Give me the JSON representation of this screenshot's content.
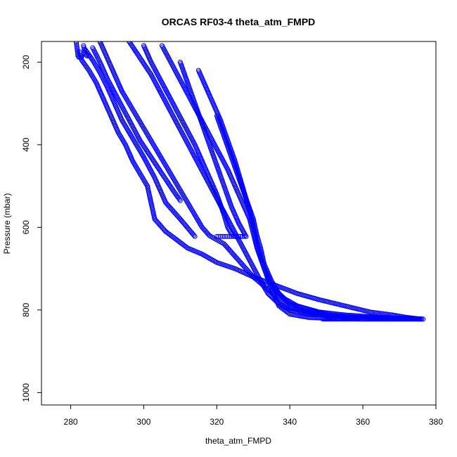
{
  "chart_data": {
    "type": "scatter",
    "title": "ORCAS RF03-4 theta_atm_FMPD",
    "xlabel": "theta_atm_FMPD",
    "ylabel": "Pressure (mbar)",
    "xlim": [
      272,
      380
    ],
    "ylim": [
      1030,
      150
    ],
    "y_reversed": true,
    "x_ticks": [
      280,
      300,
      320,
      340,
      360,
      380
    ],
    "y_ticks": [
      200,
      400,
      600,
      800,
      1000
    ],
    "marker": "open-circle",
    "color": "#0000ff",
    "series": [
      {
        "x": [
          281.5,
          281.8,
          282.0,
          282.2,
          282.5,
          283.0
        ],
        "y": [
          150,
          170,
          185,
          188,
          188,
          187
        ]
      },
      {
        "x": [
          283.5,
          283.8,
          284.0,
          284.5,
          285.0
        ],
        "y": [
          160,
          172,
          180,
          185,
          185
        ]
      },
      {
        "x": [
          282.5,
          283,
          285,
          287,
          289,
          291,
          293,
          295,
          297,
          299,
          301,
          303,
          306,
          309,
          312,
          316,
          320,
          325,
          330,
          336,
          342,
          348,
          355,
          362,
          368,
          372,
          376
        ],
        "y": [
          175,
          195,
          220,
          250,
          290,
          330,
          370,
          400,
          440,
          470,
          500,
          580,
          610,
          630,
          650,
          665,
          685,
          700,
          720,
          740,
          760,
          775,
          790,
          805,
          812,
          818,
          822
        ]
      },
      {
        "x": [
          284,
          286,
          288,
          290,
          292,
          294,
          297,
          300,
          303,
          306,
          310,
          314
        ],
        "y": [
          170,
          195,
          225,
          260,
          300,
          340,
          385,
          430,
          480,
          540,
          580,
          622
        ]
      },
      {
        "x": [
          286,
          288,
          290,
          293,
          296,
          299,
          302,
          305,
          308,
          310
        ],
        "y": [
          165,
          200,
          240,
          290,
          340,
          390,
          430,
          470,
          510,
          535
        ]
      },
      {
        "x": [
          288,
          290,
          292,
          294,
          296,
          298,
          300,
          302,
          304,
          306,
          308,
          310,
          312,
          314,
          316,
          318,
          320,
          322,
          324,
          326,
          328,
          330,
          332,
          334,
          336,
          338,
          340,
          345,
          350,
          360,
          370,
          376
        ],
        "y": [
          150,
          190,
          230,
          270,
          300,
          330,
          360,
          390,
          420,
          450,
          480,
          510,
          540,
          570,
          600,
          620,
          630,
          640,
          660,
          680,
          700,
          720,
          735,
          750,
          765,
          780,
          795,
          805,
          812,
          818,
          820,
          822
        ]
      },
      {
        "x": [
          300,
          302,
          305,
          308,
          311,
          314,
          317,
          320,
          322,
          323,
          324,
          325
        ],
        "y": [
          160,
          200,
          250,
          300,
          350,
          400,
          460,
          520,
          570,
          600,
          615,
          622
        ]
      },
      {
        "x": [
          320,
          321,
          322,
          323,
          324,
          325,
          326,
          327,
          328
        ],
        "y": [
          622,
          622,
          622,
          622,
          622,
          622,
          622,
          622,
          622
        ]
      },
      {
        "x": [
          310,
          312,
          314,
          316,
          318,
          320,
          322,
          324,
          326,
          328
        ],
        "y": [
          200,
          250,
          300,
          350,
          400,
          450,
          500,
          550,
          590,
          622
        ]
      },
      {
        "x": [
          305,
          308,
          311,
          314,
          317,
          320,
          323,
          326,
          329,
          331,
          333,
          335,
          337,
          340,
          345,
          350,
          360,
          370,
          376
        ],
        "y": [
          160,
          210,
          260,
          310,
          360,
          410,
          460,
          520,
          580,
          650,
          700,
          750,
          790,
          810,
          818,
          820,
          822,
          822,
          822
        ]
      },
      {
        "x": [
          315,
          317,
          319,
          321,
          323,
          325,
          327,
          329,
          331,
          333,
          335,
          338,
          342,
          348,
          355,
          365,
          372,
          376
        ],
        "y": [
          220,
          260,
          300,
          340,
          390,
          440,
          500,
          560,
          640,
          700,
          740,
          770,
          790,
          805,
          812,
          818,
          820,
          822
        ]
      },
      {
        "x": [
          296,
          299,
          302,
          305,
          308,
          311,
          314,
          317,
          320,
          323,
          326,
          329,
          332,
          334,
          337,
          340,
          345,
          352,
          360,
          368,
          376
        ],
        "y": [
          150,
          190,
          230,
          280,
          330,
          380,
          430,
          480,
          530,
          580,
          630,
          680,
          730,
          760,
          785,
          800,
          810,
          815,
          818,
          820,
          822
        ]
      },
      {
        "x": [
          320,
          322,
          324,
          326,
          328,
          330,
          331,
          332,
          333,
          335,
          337,
          340,
          345,
          350
        ],
        "y": [
          330,
          380,
          430,
          480,
          530,
          580,
          620,
          650,
          690,
          730,
          760,
          785,
          800,
          810
        ]
      },
      {
        "x": [
          349,
          352,
          356,
          360,
          364,
          368,
          372,
          376.5
        ],
        "y": [
          822,
          822,
          822,
          822,
          822,
          822,
          822,
          822
        ]
      }
    ]
  }
}
